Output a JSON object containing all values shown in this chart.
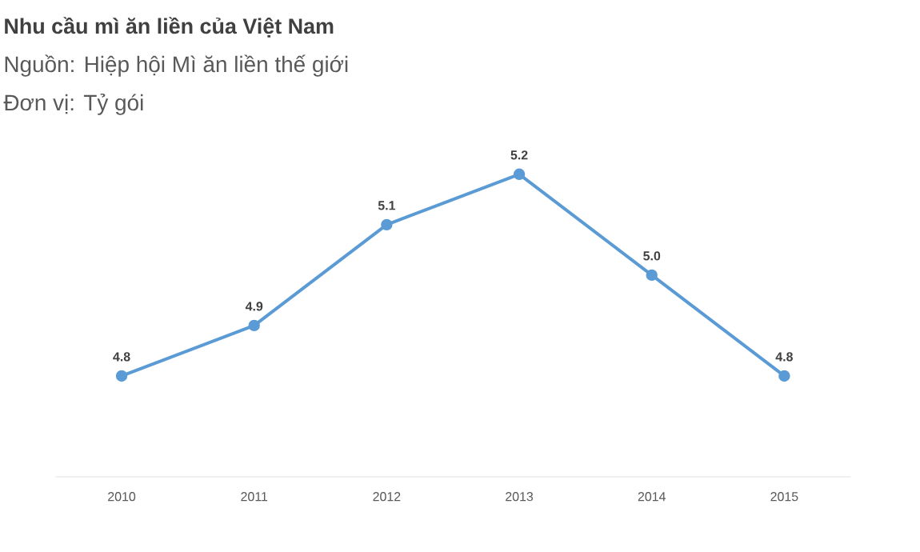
{
  "chart_data": {
    "type": "line",
    "title": "Nhu cầu mì ăn liền của Việt Nam",
    "subtitle": "Nguồn: Hiệp hội Mì ăn liền thế giới",
    "annotations": [
      "Đơn vị: Tỷ gói"
    ],
    "categories": [
      "2010",
      "2011",
      "2012",
      "2013",
      "2014",
      "2015"
    ],
    "series": [
      {
        "color": "#5b9bd5",
        "values": [
          4.8,
          4.9,
          5.1,
          5.2,
          5.0,
          4.8
        ],
        "value_labels": [
          "4.8",
          "4.9",
          "5.1",
          "5.2",
          "5.0",
          "4.8"
        ]
      }
    ],
    "marker": "circle",
    "line_style": "solid"
  }
}
